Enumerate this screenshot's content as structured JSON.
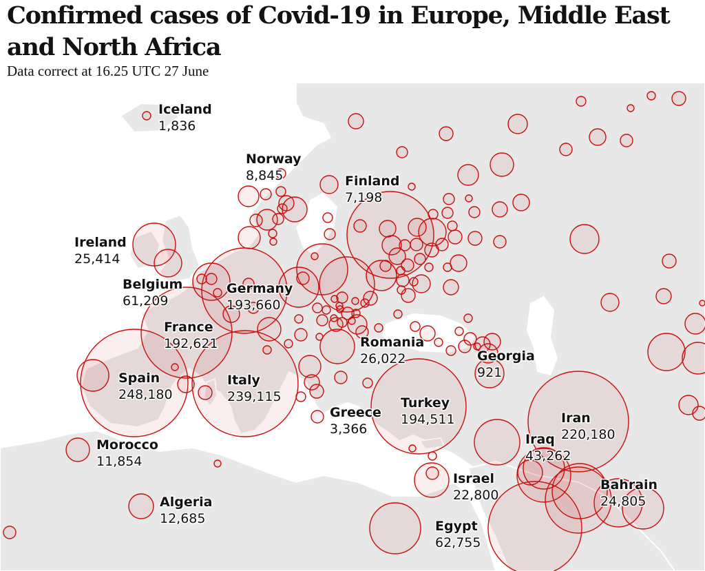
{
  "title": "Confirmed cases of Covid-19 in Europe, Middle East and North Africa",
  "subtitle": "Data correct at 16.25 UTC 27 June",
  "colors": {
    "bubble_stroke": "#c8100d",
    "land": "#e8e8e8"
  },
  "countries": [
    {
      "name": "Iceland",
      "cases": "1,836",
      "value": 1836
    },
    {
      "name": "Norway",
      "cases": "8,845",
      "value": 8845
    },
    {
      "name": "Finland",
      "cases": "7,198",
      "value": 7198
    },
    {
      "name": "Ireland",
      "cases": "25,414",
      "value": 25414
    },
    {
      "name": "Belgium",
      "cases": "61,209",
      "value": 61209
    },
    {
      "name": "Germany",
      "cases": "193,660",
      "value": 193660
    },
    {
      "name": "France",
      "cases": "192,621",
      "value": 192621
    },
    {
      "name": "Romania",
      "cases": "26,022",
      "value": 26022
    },
    {
      "name": "Georgia",
      "cases": "921",
      "value": 921
    },
    {
      "name": "Spain",
      "cases": "248,180",
      "value": 248180
    },
    {
      "name": "Italy",
      "cases": "239,115",
      "value": 239115
    },
    {
      "name": "Turkey",
      "cases": "194,511",
      "value": 194511
    },
    {
      "name": "Greece",
      "cases": "3,366",
      "value": 3366
    },
    {
      "name": "Iran",
      "cases": "220,180",
      "value": 220180
    },
    {
      "name": "Morocco",
      "cases": "11,854",
      "value": 11854
    },
    {
      "name": "Iraq",
      "cases": "43,262",
      "value": 43262
    },
    {
      "name": "Israel",
      "cases": "22,800",
      "value": 22800
    },
    {
      "name": "Bahrain",
      "cases": "24,805",
      "value": 24805
    },
    {
      "name": "Algeria",
      "cases": "12,685",
      "value": 12685
    },
    {
      "name": "Egypt",
      "cases": "62,755",
      "value": 62755
    }
  ]
}
